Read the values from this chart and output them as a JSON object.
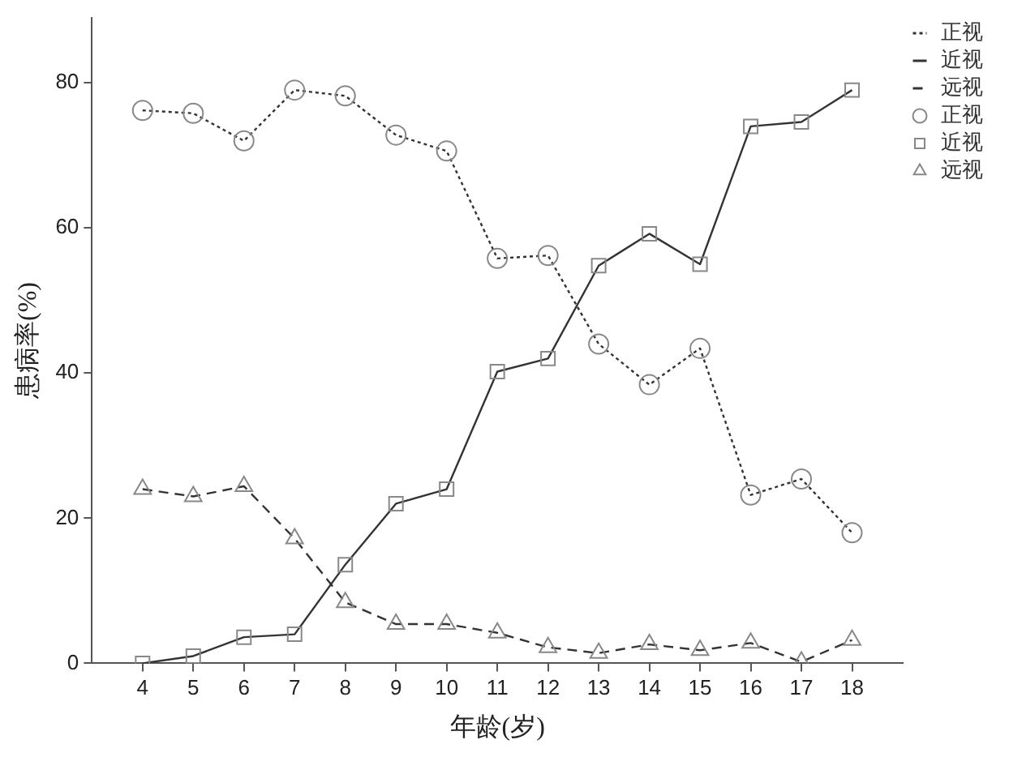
{
  "chart_data": {
    "type": "line",
    "xlabel": "年龄(岁)",
    "ylabel": "患病率(%)",
    "x": [
      4,
      5,
      6,
      7,
      8,
      9,
      10,
      11,
      12,
      13,
      14,
      15,
      16,
      17,
      18
    ],
    "xlim": [
      3,
      19
    ],
    "xticks": [
      4,
      5,
      6,
      7,
      8,
      9,
      10,
      11,
      12,
      13,
      14,
      15,
      16,
      17,
      18
    ],
    "ylim": [
      0,
      89
    ],
    "yticks": [
      0,
      20,
      40,
      60,
      80
    ],
    "grid": false,
    "legend": "top right",
    "series": [
      {
        "name": "正视",
        "color": "#333333",
        "line_style": "dotted",
        "marker": "circle",
        "values": [
          76.2,
          75.8,
          72,
          79,
          78.2,
          72.8,
          70.6,
          55.8,
          56.2,
          44,
          38.4,
          43.4,
          23.2,
          25.4,
          18
        ]
      },
      {
        "name": "近视",
        "color": "#333333",
        "line_style": "solid",
        "marker": "square",
        "values": [
          0,
          1,
          3.6,
          4,
          13.6,
          22,
          24,
          40.2,
          42,
          54.8,
          59.2,
          55,
          74,
          74.6,
          79
        ]
      },
      {
        "name": "远视",
        "color": "#333333",
        "line_style": "dashed",
        "marker": "triangle",
        "values": [
          24,
          23,
          24.4,
          17.2,
          8.4,
          5.4,
          5.4,
          4.2,
          2.2,
          1.4,
          2.6,
          1.8,
          2.8,
          0.2,
          3.2
        ]
      }
    ]
  }
}
